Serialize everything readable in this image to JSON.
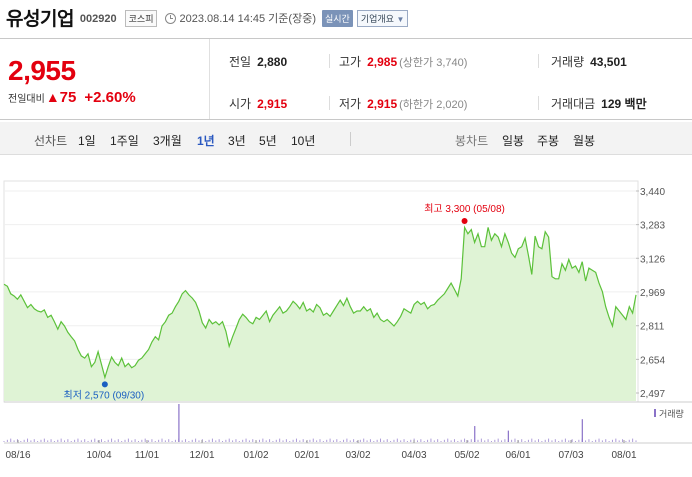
{
  "header": {
    "name": "유성기업",
    "code": "002920",
    "market": "코스피",
    "datetime": "2023.08.14 14:45 기준(장중)",
    "realtime_label": "실시간",
    "info_label": "기업개요"
  },
  "quote": {
    "price": "2,955",
    "change_label": "전일대비",
    "change_arrow": "▲",
    "change": "75",
    "change_pct": "+2.60%"
  },
  "stats": {
    "prev_close": {
      "label": "전일",
      "value": "2,880"
    },
    "high": {
      "label": "고가",
      "value": "2,985",
      "sub": "(상한가 3,740)"
    },
    "volume": {
      "label": "거래량",
      "value": "43,501"
    },
    "open": {
      "label": "시가",
      "value": "2,915"
    },
    "low": {
      "label": "저가",
      "value": "2,915",
      "sub": "(하한가 2,020)"
    },
    "turnover": {
      "label": "거래대금",
      "value": "129 백만"
    }
  },
  "tabs": {
    "line_label": "선차트",
    "line_periods": [
      "1일",
      "1주일",
      "3개월",
      "1년",
      "3년",
      "5년",
      "10년"
    ],
    "active_period": "1년",
    "candle_label": "봉차트",
    "candle_periods": [
      "일봉",
      "주봉",
      "월봉"
    ]
  },
  "colors": {
    "up": "#e3000f",
    "line": "#5cc13a",
    "fill": "#dff3d5",
    "low_marker": "#1a5fc1",
    "volume": "#8a72c8",
    "active_tab": "#2a58c0"
  },
  "chart_data": {
    "type": "area",
    "x_ticks": [
      "08/16",
      "10/04",
      "11/01",
      "12/01",
      "01/02",
      "02/01",
      "03/02",
      "04/03",
      "05/02",
      "06/01",
      "07/03",
      "08/01"
    ],
    "y_ticks": [
      3440,
      3283,
      3126,
      2969,
      2811,
      2654,
      2497
    ],
    "ylim": [
      2497,
      3440
    ],
    "high_annotation": "최고 3,300 (05/08)",
    "low_annotation": "최저 2,570 (09/30)",
    "volume_legend": "거래량",
    "price_series": [
      3005,
      2995,
      2960,
      2950,
      2935,
      2955,
      2925,
      2895,
      2910,
      2890,
      2880,
      2875,
      2885,
      2850,
      2860,
      2830,
      2795,
      2830,
      2810,
      2780,
      2760,
      2740,
      2700,
      2670,
      2660,
      2680,
      2620,
      2640,
      2690,
      2630,
      2570,
      2620,
      2665,
      2640,
      2625,
      2660,
      2620,
      2635,
      2615,
      2625,
      2650,
      2660,
      2680,
      2700,
      2735,
      2760,
      2745,
      2810,
      2830,
      2860,
      2870,
      2900,
      2925,
      2960,
      2975,
      2955,
      2940,
      2920,
      2880,
      2825,
      2800,
      2840,
      2820,
      2830,
      2815,
      2830,
      2785,
      2715,
      2760,
      2800,
      2840,
      2865,
      2850,
      2830,
      2820,
      2850,
      2840,
      2860,
      2880,
      2830,
      2860,
      2880,
      2900,
      2870,
      2880,
      2900,
      2925,
      2910,
      2890,
      2920,
      2880,
      2890,
      2875,
      2910,
      2895,
      2860,
      2870,
      2855,
      2880,
      2905,
      2930,
      2905,
      2940,
      2900,
      2870,
      2880,
      2880,
      2900,
      2880,
      2890,
      2850,
      2870,
      2840,
      2830,
      2840,
      2825,
      2810,
      2830,
      2855,
      2890,
      2880,
      2870,
      2910,
      2925,
      2910,
      2920,
      2890,
      2905,
      2910,
      2930,
      2945,
      2960,
      2985,
      3010,
      2980,
      2950,
      3030,
      3270,
      3240,
      3260,
      3200,
      3240,
      3180,
      3180,
      3270,
      3210,
      3240,
      3225,
      3180,
      3240,
      3200,
      3150,
      3130,
      3170,
      3180,
      3220,
      3140,
      3050,
      3230,
      3180,
      3170,
      3250,
      3225,
      3040,
      3030,
      3030,
      3100,
      3070,
      3120,
      3080,
      3090,
      3060,
      3110,
      3020,
      3080,
      3070,
      3060,
      3010,
      2970,
      2900,
      2850,
      2810,
      2900,
      2880,
      2860,
      2840,
      2900,
      2870,
      2955
    ],
    "volume_peaks": [
      {
        "date_index": 52,
        "relative": 1.0
      },
      {
        "date_index": 140,
        "relative": 0.42
      },
      {
        "date_index": 150,
        "relative": 0.3
      },
      {
        "date_index": 172,
        "relative": 0.6
      }
    ]
  }
}
